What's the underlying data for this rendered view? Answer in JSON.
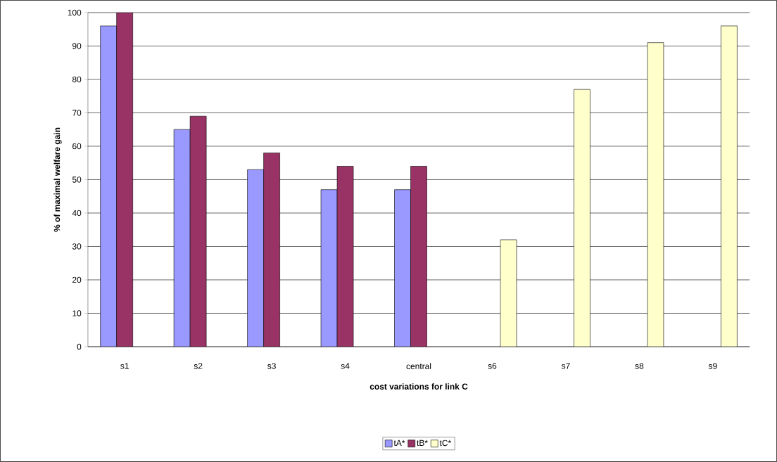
{
  "chart_data": {
    "type": "bar",
    "xlabel": "cost variations for link C",
    "ylabel": "% of maximal welfare gain",
    "categories": [
      "s1",
      "s2",
      "s3",
      "s4",
      "central",
      "s6",
      "s7",
      "s8",
      "s9"
    ],
    "series": [
      {
        "name": "tA*",
        "color": "#9999ff",
        "values": [
          96,
          65,
          53,
          47,
          47,
          null,
          null,
          null,
          null
        ]
      },
      {
        "name": "tB*",
        "color": "#993366",
        "values": [
          100,
          69,
          58,
          54,
          54,
          null,
          null,
          null,
          null
        ]
      },
      {
        "name": "tC*",
        "color": "#ffffcc",
        "values": [
          null,
          null,
          null,
          null,
          null,
          32,
          77,
          91,
          96
        ]
      }
    ],
    "ylim": [
      0,
      100
    ],
    "yticks": [
      0,
      10,
      20,
      30,
      40,
      50,
      60,
      70,
      80,
      90,
      100
    ],
    "grid": "y",
    "legend": "bottom"
  }
}
